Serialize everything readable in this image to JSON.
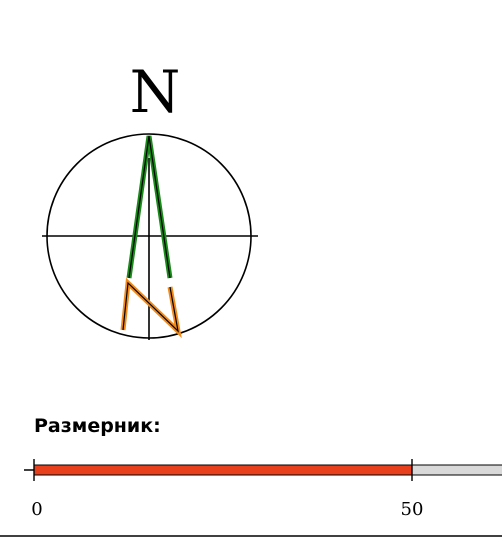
{
  "north_arrow": {
    "label": "N",
    "icon": "north-arrow-icon",
    "colors": {
      "arrow_upper": "#1a8a1a",
      "arrow_lower": "#f08a1c",
      "outline": "#000000"
    }
  },
  "scale_bar": {
    "title": "Размерник:",
    "ticks": [
      {
        "label": "0"
      },
      {
        "label": "50"
      }
    ],
    "colors": {
      "filled_segment": "#e8401c",
      "empty_segment": "#d9d9d9"
    }
  }
}
